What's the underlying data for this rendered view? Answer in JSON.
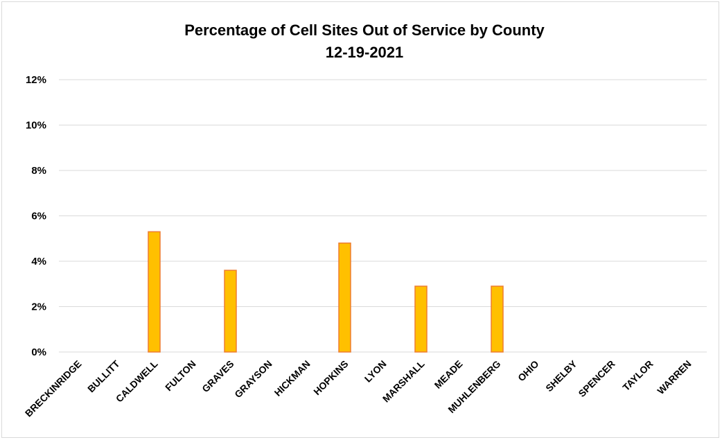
{
  "chart_data": {
    "type": "bar",
    "title": "Percentage of Cell Sites Out of Service by County",
    "subtitle": "12-19-2021",
    "xlabel": "",
    "ylabel": "",
    "categories": [
      "BRECKINRIDGE",
      "BULLITT",
      "CALDWELL",
      "FULTON",
      "GRAVES",
      "GRAYSON",
      "HICKMAN",
      "HOPKINS",
      "LYON",
      "MARSHALL",
      "MEADE",
      "MUHLENBERG",
      "OHIO",
      "SHELBY",
      "SPENCER",
      "TAYLOR",
      "WARREN"
    ],
    "values": [
      0,
      0,
      5.3,
      0,
      3.6,
      0,
      0,
      4.8,
      0,
      2.9,
      0,
      2.9,
      0,
      0,
      0,
      0,
      0
    ],
    "ylim": [
      0,
      12
    ],
    "yticks": [
      0,
      2,
      4,
      6,
      8,
      10,
      12
    ],
    "ytick_labels": [
      "0%",
      "2%",
      "4%",
      "6%",
      "8%",
      "10%",
      "12%"
    ],
    "grid": true,
    "legend": "none",
    "colors": {
      "bar_fill": "#FFC000",
      "bar_stroke": "#ED7D31",
      "grid": "#d9d9d9",
      "text": "#000000"
    }
  }
}
